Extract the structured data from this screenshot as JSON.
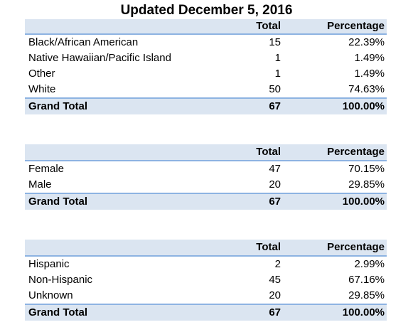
{
  "title": "Updated December 5, 2016",
  "tables": [
    {
      "headers": [
        "",
        "Total",
        "Percentage"
      ],
      "rows": [
        [
          "Black/African American",
          "15",
          "22.39%"
        ],
        [
          "Native Hawaiian/Pacific Island",
          "1",
          "1.49%"
        ],
        [
          "Other",
          "1",
          "1.49%"
        ],
        [
          "White",
          "50",
          "74.63%"
        ]
      ],
      "grand_total": [
        "Grand Total",
        "67",
        "100.00%"
      ]
    },
    {
      "headers": [
        "",
        "Total",
        "Percentage"
      ],
      "rows": [
        [
          "Female",
          "47",
          "70.15%"
        ],
        [
          "Male",
          "20",
          "29.85%"
        ]
      ],
      "grand_total": [
        "Grand Total",
        "67",
        "100.00%"
      ]
    },
    {
      "headers": [
        "",
        "Total",
        "Percentage"
      ],
      "rows": [
        [
          "Hispanic",
          "2",
          "2.99%"
        ],
        [
          "Non-Hispanic",
          "45",
          "67.16%"
        ],
        [
          "Unknown",
          "20",
          "29.85%"
        ]
      ],
      "grand_total": [
        "Grand Total",
        "67",
        "100.00%"
      ]
    }
  ]
}
